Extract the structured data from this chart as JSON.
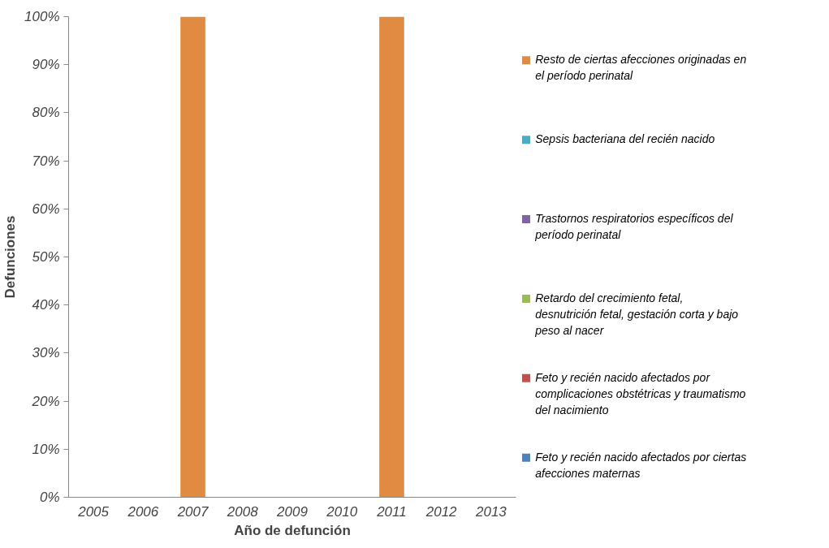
{
  "chart_data": {
    "type": "bar",
    "xlabel": "Año de defunción",
    "ylabel": "Defunciones",
    "categories": [
      "2005",
      "2006",
      "2007",
      "2008",
      "2009",
      "2010",
      "2011",
      "2012",
      "2013"
    ],
    "ylim": [
      0,
      100
    ],
    "yticks": [
      {
        "value": 0,
        "label": "0%"
      },
      {
        "value": 10,
        "label": "10%"
      },
      {
        "value": 20,
        "label": "20%"
      },
      {
        "value": 30,
        "label": "30%"
      },
      {
        "value": 40,
        "label": "40%"
      },
      {
        "value": 50,
        "label": "50%"
      },
      {
        "value": 60,
        "label": "60%"
      },
      {
        "value": 70,
        "label": "70%"
      },
      {
        "value": 80,
        "label": "80%"
      },
      {
        "value": 90,
        "label": "90%"
      },
      {
        "value": 100,
        "label": "100%"
      }
    ],
    "grid": false,
    "legend": "right",
    "series": [
      {
        "name": "Feto y recién nacido afectados por ciertas afecciones maternas",
        "color": "#4f81bd",
        "values": [
          null,
          null,
          null,
          null,
          null,
          null,
          null,
          null,
          null
        ]
      },
      {
        "name": "Feto y recién nacido afectados por complicaciones obstétricas y traumatismo del nacimiento",
        "color": "#c0504d",
        "values": [
          null,
          null,
          null,
          null,
          null,
          null,
          null,
          null,
          null
        ]
      },
      {
        "name": "Retardo del crecimiento fetal, desnutrición fetal, gestación corta y bajo peso al nacer",
        "color": "#9bbb59",
        "values": [
          null,
          null,
          null,
          null,
          null,
          null,
          null,
          null,
          null
        ]
      },
      {
        "name": "Trastornos respiratorios específicos del período perinatal",
        "color": "#8064a2",
        "values": [
          null,
          null,
          null,
          null,
          null,
          null,
          null,
          null,
          null
        ]
      },
      {
        "name": "Sepsis bacteriana del recién nacido",
        "color": "#4bacc6",
        "values": [
          null,
          null,
          null,
          null,
          null,
          null,
          null,
          null,
          null
        ]
      },
      {
        "name": "Resto de ciertas afecciones originadas en el período perinatal",
        "color": "#e08a42",
        "values": [
          null,
          null,
          100,
          null,
          null,
          null,
          100,
          null,
          null
        ]
      }
    ]
  }
}
